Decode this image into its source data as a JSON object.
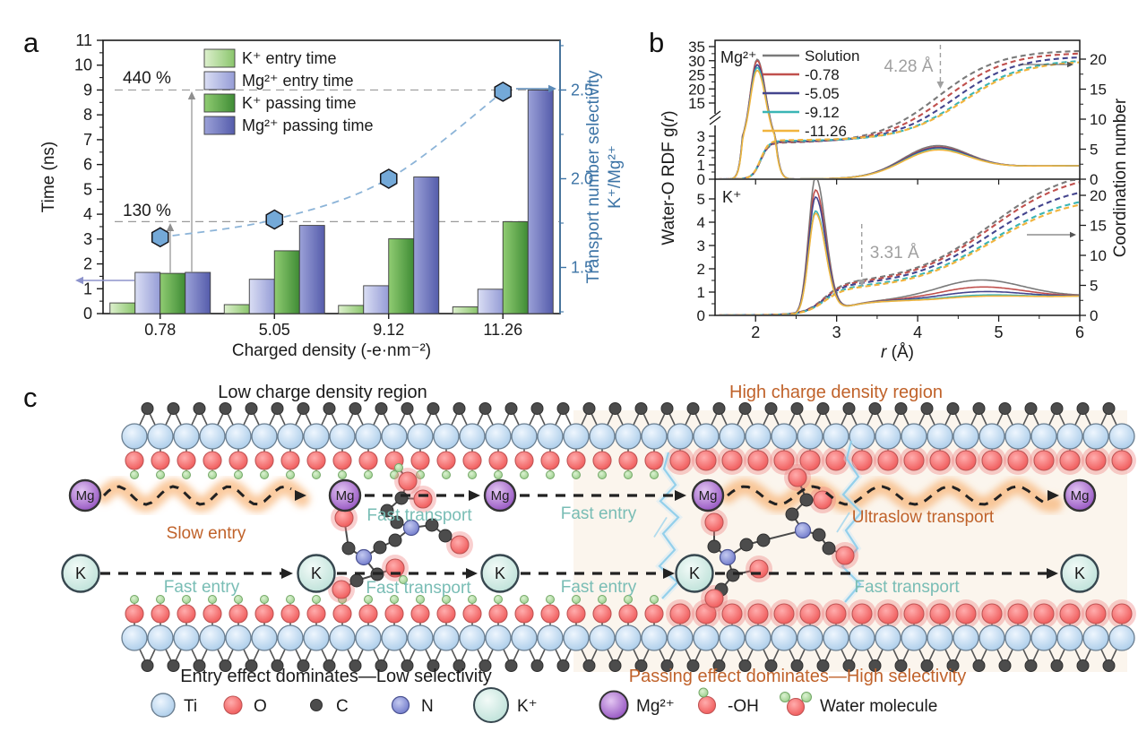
{
  "panel_letters": {
    "a": "a",
    "b": "b",
    "c": "c"
  },
  "colors": {
    "axis_black": "#1a1a1a",
    "right_axis_blue": "#3d74a6",
    "annotation_gray": "#949494",
    "trend_blue": "#8cb4d8",
    "hexagon_fill": "#74a9d8",
    "teal_label": "#79bdb5",
    "orange_label": "#c0622a"
  },
  "chart_data": [
    {
      "id": "panel_a",
      "type": "bar",
      "categories": [
        "0.78",
        "5.05",
        "9.12",
        "11.26"
      ],
      "series": [
        {
          "name": "K⁺ entry time",
          "values": [
            0.43,
            0.36,
            0.33,
            0.27
          ],
          "light": "#ddf0cd",
          "dark": "#8ac56c"
        },
        {
          "name": "Mg²⁺ entry time",
          "values": [
            1.66,
            1.38,
            1.12,
            0.98
          ],
          "light": "#dadef4",
          "dark": "#959cd6"
        },
        {
          "name": "K⁺ passing time",
          "values": [
            1.62,
            2.53,
            3.01,
            3.7
          ],
          "light": "#90cc72",
          "dark": "#3f8c35"
        },
        {
          "name": "Mg²⁺ passing time",
          "values": [
            1.66,
            3.55,
            5.5,
            9.0
          ],
          "light": "#9ba1d8",
          "dark": "#555cab"
        }
      ],
      "line_series": {
        "name": "Transport number selectivity K⁺/Mg²⁺",
        "values": [
          1.67,
          1.77,
          2.0,
          2.49
        ],
        "marker": "hexagon"
      },
      "xlabel": "Charged density (-e·nm⁻²)",
      "ylabel_left": "Time (ns)",
      "ylabel_right_line1": "Transport number selectivity",
      "ylabel_right_line2": "K⁺/Mg²⁺",
      "ylim_left": [
        0,
        11
      ],
      "yticks_left": [
        0,
        1,
        2,
        3,
        4,
        5,
        6,
        7,
        8,
        9,
        10,
        11
      ],
      "ylim_right": [
        1.24,
        2.78
      ],
      "yticks_right": [
        "1.5",
        "2.0",
        "2.5"
      ],
      "annotations": [
        {
          "text": "440 %",
          "line_y": 9.0
        },
        {
          "text": "130 %",
          "line_y": 3.7
        }
      ]
    },
    {
      "id": "panel_b_mg",
      "type": "line",
      "ion": "Mg²⁺",
      "legend": [
        "Solution",
        "-0.78",
        "-5.05",
        "-9.12",
        "-11.26"
      ],
      "line_colors": [
        "#7a7a7a",
        "#c0504d",
        "#44458e",
        "#3ab5b5",
        "#f1b43e"
      ],
      "xlabel_parts": [
        {
          "t": "r",
          "i": 1
        },
        {
          "t": " (Å)"
        }
      ],
      "ylabel_parts": [
        {
          "t": "Water-O RDF g("
        },
        {
          "t": "r",
          "i": 1
        },
        {
          "t": ")"
        }
      ],
      "ylabel_right": "Coordination number",
      "x_range": [
        1.5,
        6
      ],
      "xticks": [
        2,
        3,
        4,
        5,
        6
      ],
      "broken_axis": {
        "lower": [
          0,
          3
        ],
        "upper": [
          15,
          35
        ]
      },
      "yticks_lower": [
        0,
        1,
        2,
        3
      ],
      "yticks_upper": [
        15,
        20,
        25,
        30,
        35
      ],
      "yticks_right": [
        0,
        5,
        10,
        15,
        20
      ],
      "first_peak": {
        "r": 2.02,
        "g": [
          30.5,
          30.0,
          28.6,
          27.6,
          26.6
        ]
      },
      "second_peak": {
        "r": 4.25,
        "g": [
          2.35,
          2.25,
          2.2,
          2.1,
          2.05
        ]
      },
      "coordination_first_shell": 6,
      "coordination_at_6A": [
        21.3,
        20.3,
        19.4,
        18.5,
        18.2
      ],
      "annotation": {
        "text": "4.28 Å",
        "r": 4.28
      }
    },
    {
      "id": "panel_b_k",
      "type": "line",
      "ion": "K⁺",
      "x_range": [
        1.5,
        6
      ],
      "xticks": [
        2,
        3,
        4,
        5,
        6
      ],
      "ylim": [
        0,
        5.85
      ],
      "yticks": [
        0,
        1,
        2,
        3,
        4,
        5
      ],
      "yticks_right": [
        0,
        5,
        10,
        15,
        20
      ],
      "first_peak": {
        "r": 2.74,
        "g": [
          5.85,
          5.3,
          5.0,
          4.4,
          4.3
        ]
      },
      "second_peak": {
        "r": 4.75,
        "g": [
          1.45,
          1.15,
          0.95,
          0.8,
          0.75
        ]
      },
      "coordination_first_shell": [
        5.2,
        5.0,
        4.8,
        4.4,
        4.2
      ],
      "coordination_at_6A": [
        22.5,
        22.0,
        20.5,
        19.3,
        19.0
      ],
      "annotation": {
        "text": "3.31 Å",
        "r": 3.31
      }
    }
  ],
  "panel_c": {
    "region_labels": [
      {
        "text": "Low charge density region",
        "color": "#1a1a1a"
      },
      {
        "text": "High charge density region",
        "color": "#c0622a"
      }
    ],
    "mg_label": "Mg",
    "k_label": "K",
    "mg_segments": [
      "Slow entry",
      "Fast transport",
      "Fast entry",
      "Ultraslow transport"
    ],
    "k_segments": [
      "Fast entry",
      "Fast transport",
      "Fast entry",
      "Fast transport"
    ],
    "captions": [
      {
        "text": "Entry effect dominates—Low selectivity",
        "color": "#1a1a1a"
      },
      {
        "text": "Passing effect dominates—High selectivity",
        "color": "#c0622a"
      }
    ],
    "legend": [
      {
        "label": "Ti",
        "type": "ti"
      },
      {
        "label": "O",
        "type": "o"
      },
      {
        "label": "C",
        "type": "c"
      },
      {
        "label": "N",
        "type": "n"
      },
      {
        "label": "K⁺",
        "type": "k"
      },
      {
        "label": "Mg²⁺",
        "type": "mg"
      },
      {
        "label": "-OH",
        "type": "oh"
      },
      {
        "label": "Water molecule",
        "type": "water"
      }
    ],
    "atoms": {
      "ti": "#bcd7f0",
      "o": "#f26a6a",
      "c": "#4c4c4c",
      "n": "#7d87d6",
      "h": "#aedaa2",
      "k": "#cfeae4",
      "mg": "#a05fc8"
    }
  }
}
